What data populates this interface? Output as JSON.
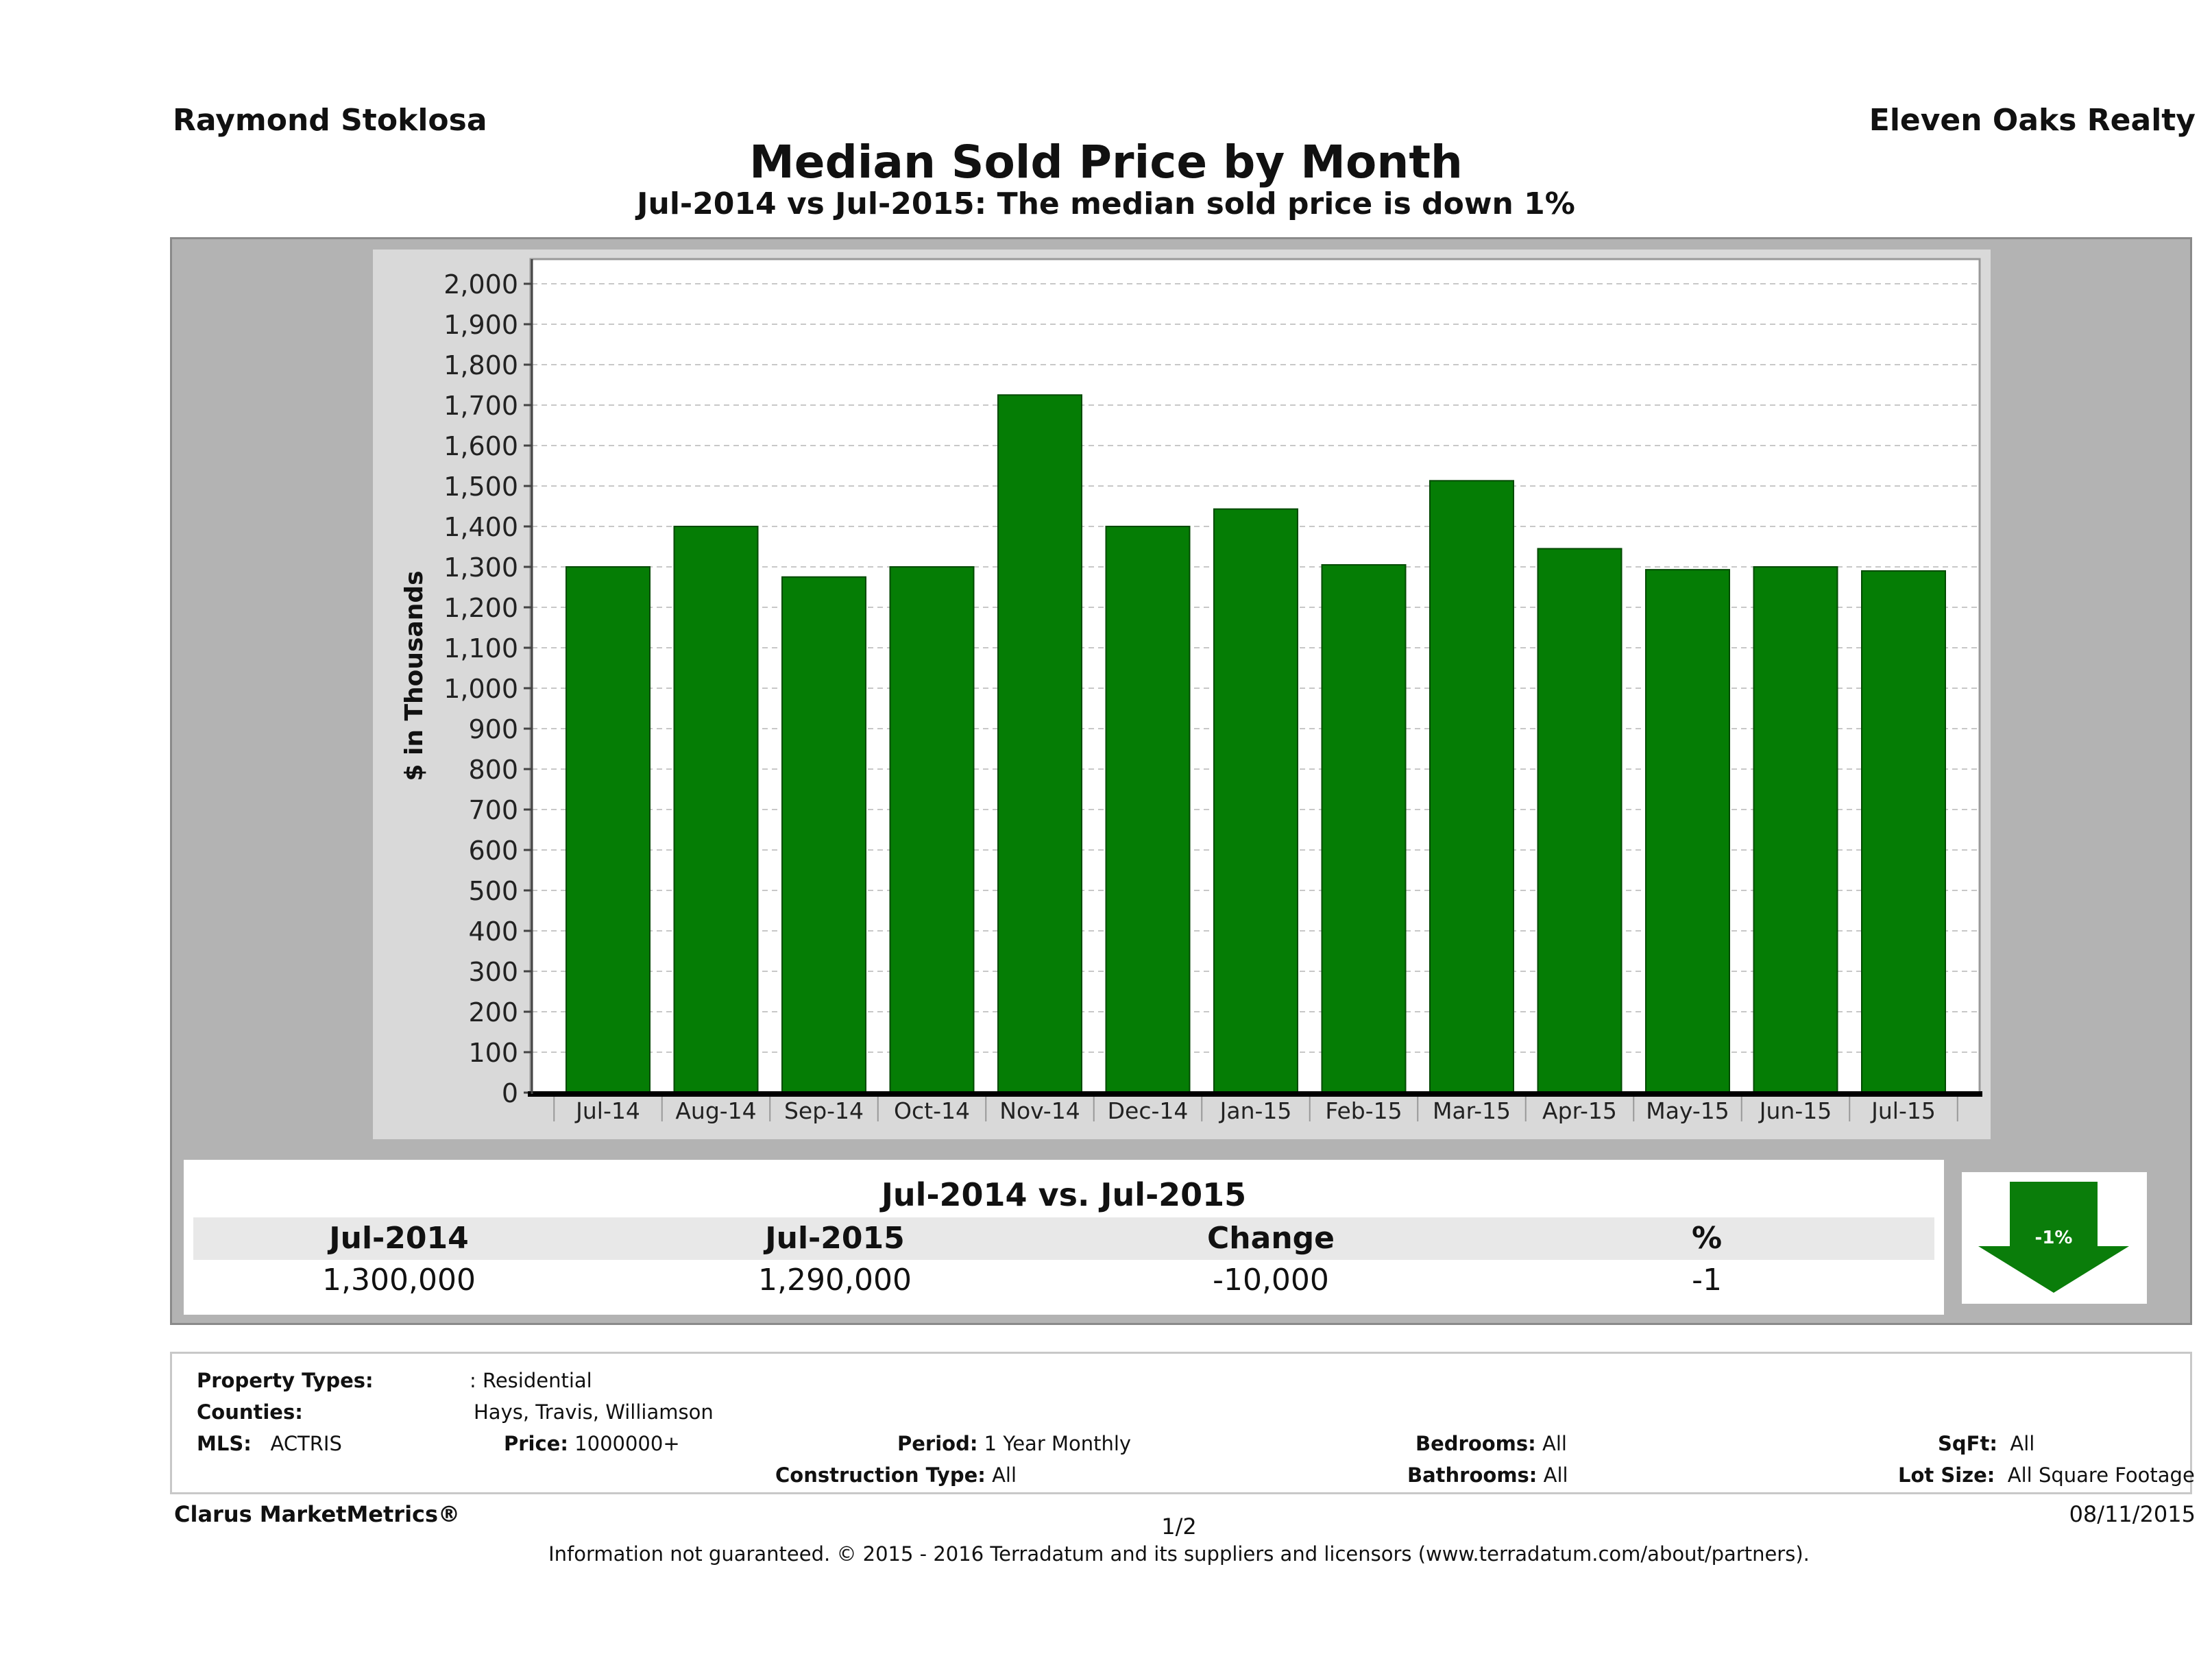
{
  "header": {
    "agent": "Raymond Stoklosa",
    "company": "Eleven Oaks Realty"
  },
  "chart_data": {
    "type": "bar",
    "title": "Median Sold Price by Month",
    "subtitle": "Jul-2014 vs Jul-2015: The median sold price is down 1%",
    "xlabel": "",
    "ylabel": "$ in Thousands",
    "ylim": [
      0,
      2000
    ],
    "yticks": [
      0,
      100,
      200,
      300,
      400,
      500,
      600,
      700,
      800,
      900,
      1000,
      1100,
      1200,
      1300,
      1400,
      1500,
      1600,
      1700,
      1800,
      1900,
      2000
    ],
    "ytick_labels": [
      "0",
      "100",
      "200",
      "300",
      "400",
      "500",
      "600",
      "700",
      "800",
      "900",
      "1,000",
      "1,100",
      "1,200",
      "1,300",
      "1,400",
      "1,500",
      "1,600",
      "1,700",
      "1,800",
      "1,900",
      "2,000"
    ],
    "grid": true,
    "categories": [
      "Jul-14",
      "Aug-14",
      "Sep-14",
      "Oct-14",
      "Nov-14",
      "Dec-14",
      "Jan-15",
      "Feb-15",
      "Mar-15",
      "Apr-15",
      "May-15",
      "Jun-15",
      "Jul-15"
    ],
    "values": [
      1300,
      1400,
      1275,
      1300,
      1725,
      1400,
      1443,
      1305,
      1513,
      1345,
      1293,
      1300,
      1290
    ],
    "bar_color": "#057d05"
  },
  "summary": {
    "heading": "Jul-2014 vs. Jul-2015",
    "labels": [
      "Jul-2014",
      "Jul-2015",
      "Change",
      "%"
    ],
    "values": [
      "1,300,000",
      "1,290,000",
      "-10,000",
      "-1"
    ],
    "badge": "-1%",
    "arrow_color": "#0a7d0a",
    "arrow_direction": "down"
  },
  "info": {
    "property_types_label": "Property Types:",
    "property_types_value": ": Residential",
    "counties_label": "Counties:",
    "counties_value": "Hays, Travis, Williamson",
    "mls_label": "MLS:",
    "mls_value": "ACTRIS",
    "price_label": "Price:",
    "price_value": "1000000+",
    "period_label": "Period:",
    "period_value": "1 Year Monthly",
    "construction_label": "Construction Type:",
    "construction_value": "All",
    "bedrooms_label": "Bedrooms:",
    "bedrooms_value": "All",
    "bathrooms_label": "Bathrooms:",
    "bathrooms_value": "All",
    "sqft_label": "SqFt:",
    "sqft_value": "All",
    "lot_label": "Lot Size:",
    "lot_value": "All Square Footage"
  },
  "footer": {
    "brand": "Clarus MarketMetrics®",
    "page": "1/2",
    "date": "08/11/2015",
    "note": "Information not guaranteed. © 2015 - 2016 Terradatum and its suppliers and licensors (www.terradatum.com/about/partners)."
  }
}
